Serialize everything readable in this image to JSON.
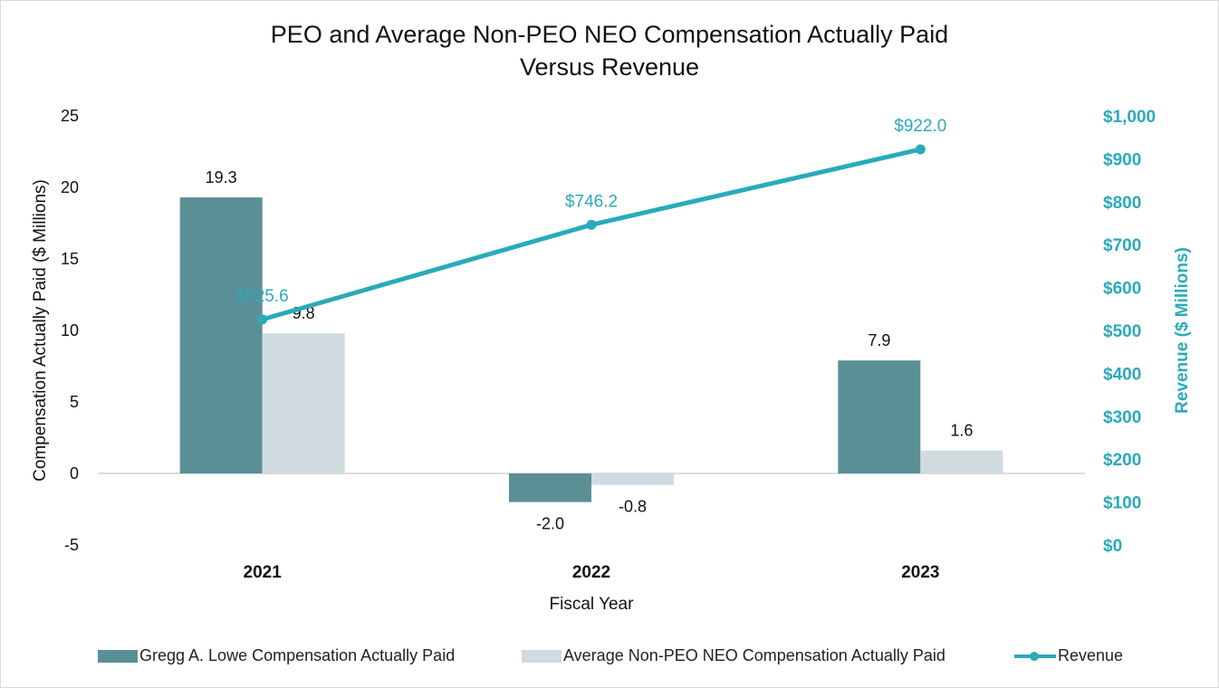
{
  "title_line1": "PEO and Average Non-PEO NEO Compensation Actually Paid",
  "title_line2": "Versus Revenue",
  "colors": {
    "peo": "#5a8f96",
    "non_peo": "#cfdbde",
    "revenue": "#2aaabb",
    "axis_text": "#111111"
  },
  "chart_data": {
    "type": "bar",
    "title": "PEO and Average Non-PEO NEO Compensation Actually Paid Versus Revenue",
    "categories": [
      "2021",
      "2022",
      "2023"
    ],
    "xlabel": "Fiscal Year",
    "ylabel": "Compensation Actually Paid ($ Millions)",
    "y2label": "Revenue ($ Millions)",
    "ylim": [
      -5,
      25
    ],
    "yticks": [
      "25",
      "20",
      "15",
      "10",
      "5",
      "0",
      "-5"
    ],
    "y2lim": [
      0,
      1000
    ],
    "y2ticks": [
      "$1,000",
      "$900",
      "$800",
      "$700",
      "$600",
      "$500",
      "$400",
      "$300",
      "$200",
      "$100",
      "$0"
    ],
    "series": [
      {
        "name": "Gregg A. Lowe Compensation Actually Paid",
        "type": "bar",
        "axis": "left",
        "values": [
          19.3,
          -2.0,
          7.9
        ],
        "labels": [
          "19.3",
          "-2.0",
          "7.9"
        ]
      },
      {
        "name": "Average Non-PEO NEO Compensation Actually Paid",
        "type": "bar",
        "axis": "left",
        "values": [
          9.8,
          -0.8,
          1.6
        ],
        "labels": [
          "9.8",
          "-0.8",
          "1.6"
        ]
      },
      {
        "name": "Revenue",
        "type": "line",
        "axis": "right",
        "values": [
          525.6,
          746.2,
          922.0
        ],
        "labels": [
          "$525.6",
          "$746.2",
          "$922.0"
        ]
      }
    ],
    "grid": false,
    "legend_position": "bottom"
  }
}
